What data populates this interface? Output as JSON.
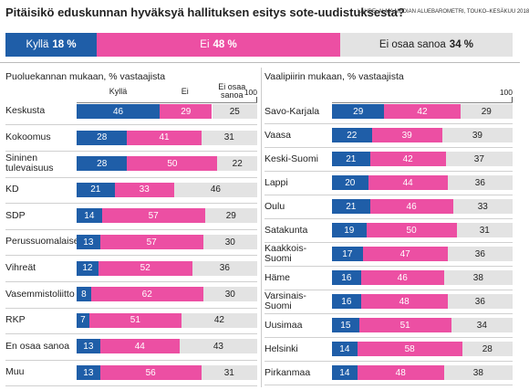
{
  "chart_data": [
    {
      "type": "stacked-bar",
      "title": "Pitäisikö eduskunnan hyväksyä hallituksen esitys sote-uudistuksesta?",
      "source": "LÄHDE: ALMA MEDIAN ALUEBAROMETRI, TOUKO–KESÄKUU 2018",
      "xlim": [
        0,
        100
      ],
      "series": [
        {
          "name": "Kyllä",
          "color": "#1f5ea8",
          "values": [
            18
          ],
          "value_labels": [
            "18 %"
          ]
        },
        {
          "name": "Ei",
          "color": "#ec4fa3",
          "values": [
            48
          ],
          "value_labels": [
            "48 %"
          ]
        },
        {
          "name": "Ei osaa sanoa",
          "color": "#e3e3e3",
          "values": [
            34
          ],
          "value_labels": [
            "34 %"
          ]
        }
      ]
    },
    {
      "type": "stacked-bar",
      "title": "Puoluekannan mukaan, % vastaajista",
      "xlim": [
        0,
        100
      ],
      "xticks": [
        100
      ],
      "categories": [
        "Keskusta",
        "Kokoomus",
        "Sininen tulevaisuus",
        "KD",
        "SDP",
        "Perussuomalaiset",
        "Vihreät",
        "Vasemmistoliitto",
        "RKP",
        "En osaa sanoa",
        "Muu"
      ],
      "series": [
        {
          "name": "Kyllä",
          "color": "#1f5ea8",
          "values": [
            46,
            28,
            28,
            21,
            14,
            13,
            12,
            8,
            7,
            13,
            13
          ]
        },
        {
          "name": "Ei",
          "color": "#ec4fa3",
          "values": [
            29,
            41,
            50,
            33,
            57,
            57,
            52,
            62,
            51,
            44,
            56
          ]
        },
        {
          "name": "Ei osaa sanoa",
          "color": "#e3e3e3",
          "values": [
            25,
            31,
            22,
            46,
            29,
            30,
            36,
            30,
            42,
            43,
            31
          ]
        }
      ]
    },
    {
      "type": "stacked-bar",
      "title": "Vaalipiirin mukaan, % vastaajista",
      "xlim": [
        0,
        100
      ],
      "xticks": [
        100
      ],
      "categories": [
        "Savo-Karjala",
        "Vaasa",
        "Keski-Suomi",
        "Lappi",
        "Oulu",
        "Satakunta",
        "Kaakkois-Suomi",
        "Häme",
        "Varsinais-Suomi",
        "Uusimaa",
        "Helsinki",
        "Pirkanmaa"
      ],
      "series": [
        {
          "color": "#1f5ea8",
          "values": [
            29,
            22,
            21,
            20,
            21,
            19,
            17,
            16,
            16,
            15,
            14,
            14
          ]
        },
        {
          "color": "#ec4fa3",
          "values": [
            42,
            39,
            42,
            44,
            46,
            50,
            47,
            46,
            48,
            51,
            58,
            48
          ]
        },
        {
          "color": "#e3e3e3",
          "values": [
            29,
            39,
            37,
            36,
            33,
            31,
            36,
            38,
            36,
            34,
            28,
            38
          ]
        }
      ]
    }
  ]
}
